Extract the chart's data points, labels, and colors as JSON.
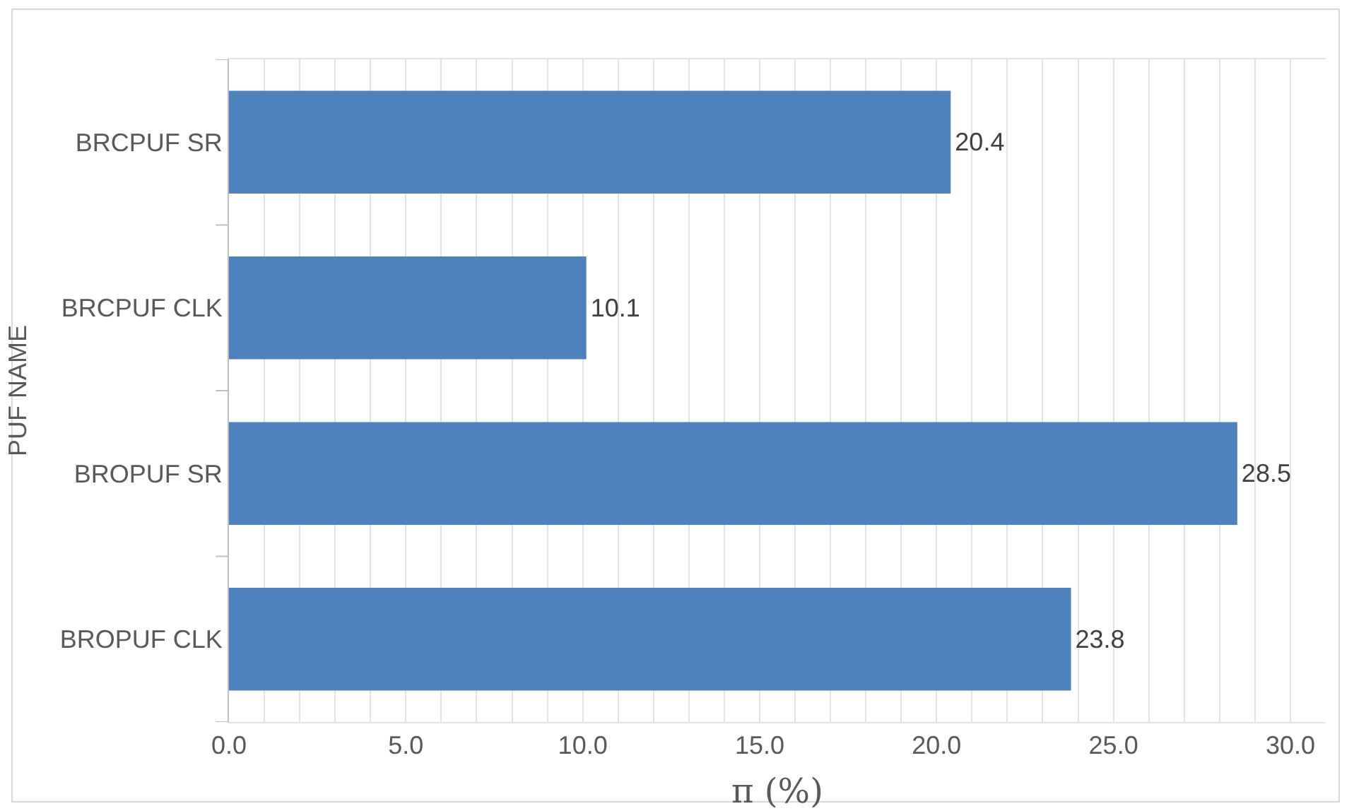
{
  "chart_data": {
    "type": "bar",
    "orientation": "horizontal",
    "ylabel": "PUF NAME",
    "xlabel": "π (%)",
    "categories": [
      "BRCPUF SR",
      "BRCPUF CLK",
      "BROPUF SR",
      "BROPUF CLK"
    ],
    "values": [
      20.4,
      10.1,
      28.5,
      23.8
    ],
    "color": "#4f81bd",
    "data_labels": true,
    "xlim": [
      0,
      31
    ],
    "xticks": [
      {
        "value": 0,
        "label": "0.0"
      },
      {
        "value": 1,
        "label": null
      },
      {
        "value": 2,
        "label": null
      },
      {
        "value": 3,
        "label": null
      },
      {
        "value": 4,
        "label": null
      },
      {
        "value": 5,
        "label": "5.0"
      },
      {
        "value": 6,
        "label": null
      },
      {
        "value": 7,
        "label": null
      },
      {
        "value": 8,
        "label": null
      },
      {
        "value": 9,
        "label": null
      },
      {
        "value": 10,
        "label": "10.0"
      },
      {
        "value": 11,
        "label": null
      },
      {
        "value": 12,
        "label": null
      },
      {
        "value": 13,
        "label": null
      },
      {
        "value": 14,
        "label": null
      },
      {
        "value": 15,
        "label": "15.0"
      },
      {
        "value": 16,
        "label": null
      },
      {
        "value": 17,
        "label": null
      },
      {
        "value": 18,
        "label": null
      },
      {
        "value": 19,
        "label": null
      },
      {
        "value": 20,
        "label": "20.0"
      },
      {
        "value": 21,
        "label": null
      },
      {
        "value": 22,
        "label": null
      },
      {
        "value": 23,
        "label": null
      },
      {
        "value": 24,
        "label": null
      },
      {
        "value": 25,
        "label": "25.0"
      },
      {
        "value": 26,
        "label": null
      },
      {
        "value": 27,
        "label": null
      },
      {
        "value": 28,
        "label": null
      },
      {
        "value": 29,
        "label": null
      },
      {
        "value": 30,
        "label": "30.0"
      }
    ],
    "grid": "x"
  }
}
